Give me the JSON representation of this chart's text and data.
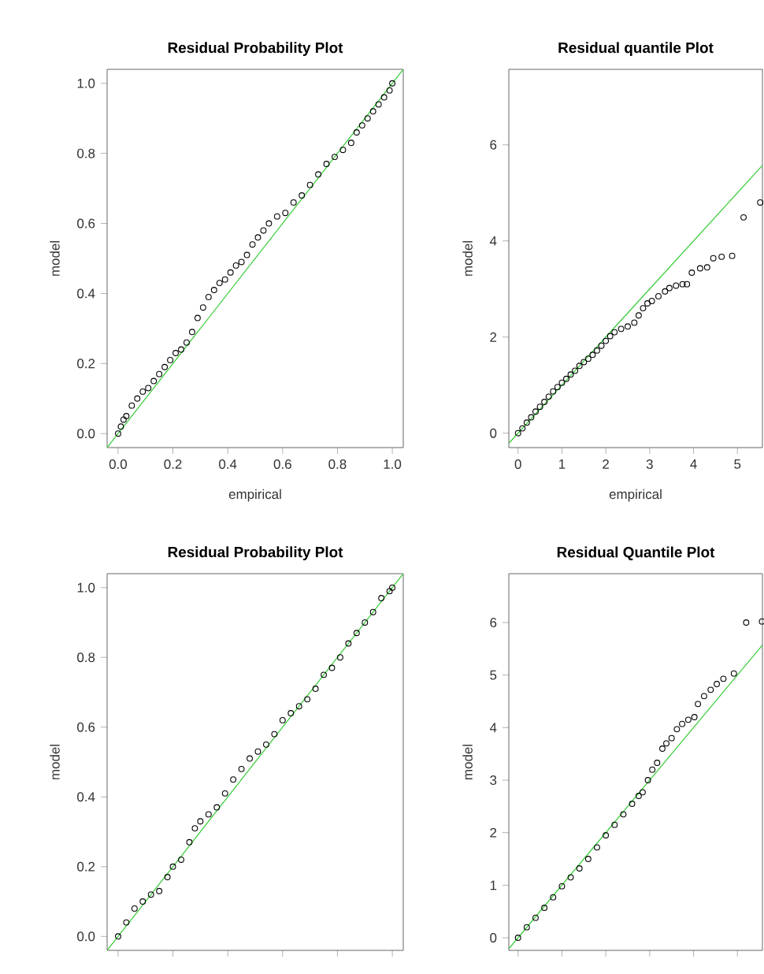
{
  "chart_data": [
    {
      "type": "scatter",
      "title": "Residual Probability Plot",
      "xlabel": "empirical",
      "ylabel": "model",
      "xlim": [
        -0.04,
        1.04
      ],
      "ylim": [
        -0.04,
        1.04
      ],
      "xticks": [
        {
          "value": 0,
          "label": "0.0"
        },
        {
          "value": 0.2,
          "label": "0.2"
        },
        {
          "value": 0.4,
          "label": "0.4"
        },
        {
          "value": 0.6,
          "label": "0.6"
        },
        {
          "value": 0.8,
          "label": "0.8"
        },
        {
          "value": 1,
          "label": "1.0"
        }
      ],
      "yticks": [
        {
          "value": 0,
          "label": "0.0"
        },
        {
          "value": 0.2,
          "label": "0.2"
        },
        {
          "value": 0.4,
          "label": "0.4"
        },
        {
          "value": 0.6,
          "label": "0.6"
        },
        {
          "value": 0.8,
          "label": "0.8"
        },
        {
          "value": 1,
          "label": "1.0"
        }
      ],
      "series": [
        {
          "type": "scatter",
          "marker": "circle",
          "color": "#000000",
          "x": [
            0,
            0.01,
            0.02,
            0.03,
            0.05,
            0.07,
            0.09,
            0.11,
            0.13,
            0.15,
            0.17,
            0.19,
            0.21,
            0.23,
            0.25,
            0.27,
            0.29,
            0.31,
            0.33,
            0.35,
            0.37,
            0.39,
            0.41,
            0.43,
            0.45,
            0.47,
            0.49,
            0.51,
            0.53,
            0.55,
            0.58,
            0.61,
            0.64,
            0.67,
            0.7,
            0.73,
            0.76,
            0.79,
            0.82,
            0.85,
            0.87,
            0.89,
            0.91,
            0.93,
            0.95,
            0.97,
            0.99,
            1.0
          ],
          "values": [
            0,
            0.02,
            0.04,
            0.05,
            0.08,
            0.1,
            0.12,
            0.13,
            0.15,
            0.17,
            0.19,
            0.21,
            0.23,
            0.24,
            0.26,
            0.29,
            0.33,
            0.36,
            0.39,
            0.41,
            0.43,
            0.44,
            0.46,
            0.48,
            0.49,
            0.51,
            0.54,
            0.56,
            0.58,
            0.6,
            0.62,
            0.63,
            0.66,
            0.68,
            0.71,
            0.74,
            0.77,
            0.79,
            0.81,
            0.83,
            0.86,
            0.88,
            0.9,
            0.92,
            0.94,
            0.96,
            0.98,
            1.0
          ]
        },
        {
          "type": "line",
          "color": "#33cc33",
          "x": [
            -0.04,
            1.04
          ],
          "values": [
            -0.04,
            1.04
          ]
        }
      ]
    },
    {
      "type": "scatter",
      "title": "Residual quantile Plot",
      "xlabel": "empirical",
      "ylabel": "model",
      "xlim": [
        -0.21,
        5.57
      ],
      "ylim": [
        -0.3,
        7.57
      ],
      "xticks": [
        0,
        1,
        2,
        3,
        4,
        5
      ],
      "yticks": [
        0,
        2,
        4,
        6
      ],
      "series": [
        {
          "type": "scatter",
          "marker": "circle",
          "color": "#000000",
          "x": [
            0,
            0.1,
            0.2,
            0.3,
            0.4,
            0.5,
            0.6,
            0.7,
            0.8,
            0.9,
            1.0,
            1.1,
            1.2,
            1.3,
            1.4,
            1.5,
            1.6,
            1.7,
            1.8,
            1.9,
            2.0,
            2.1,
            2.2,
            2.35,
            2.5,
            2.65,
            2.75,
            2.85,
            2.95,
            3.05,
            3.2,
            3.35,
            3.45,
            3.6,
            3.75,
            3.85,
            3.96,
            4.15,
            4.31,
            4.45,
            4.64,
            4.88,
            5.14,
            5.52
          ],
          "values": [
            0,
            0.1,
            0.22,
            0.33,
            0.45,
            0.55,
            0.65,
            0.76,
            0.87,
            0.96,
            1.05,
            1.13,
            1.22,
            1.3,
            1.4,
            1.48,
            1.55,
            1.63,
            1.72,
            1.82,
            1.92,
            2.02,
            2.1,
            2.17,
            2.22,
            2.3,
            2.45,
            2.6,
            2.7,
            2.75,
            2.85,
            2.95,
            3.02,
            3.07,
            3.1,
            3.1,
            3.34,
            3.43,
            3.45,
            3.64,
            3.67,
            3.69,
            4.49,
            4.8
          ]
        },
        {
          "type": "line",
          "color": "#33cc33",
          "x": [
            -0.21,
            5.57
          ],
          "values": [
            -0.21,
            5.57
          ]
        }
      ]
    },
    {
      "type": "scatter",
      "title": "Residual Probability Plot",
      "ylabel": "model",
      "tick_labels": "y",
      "xlim": [
        -0.04,
        1.04
      ],
      "ylim": [
        -0.04,
        1.04
      ],
      "xticks": [
        {
          "value": 0,
          "label": null
        },
        {
          "value": 0.2,
          "label": null
        },
        {
          "value": 0.4,
          "label": null
        },
        {
          "value": 0.6,
          "label": null
        },
        {
          "value": 0.8,
          "label": null
        },
        {
          "value": 1,
          "label": null
        }
      ],
      "yticks": [
        {
          "value": 0,
          "label": "0.0"
        },
        {
          "value": 0.2,
          "label": "0.2"
        },
        {
          "value": 0.4,
          "label": "0.4"
        },
        {
          "value": 0.6,
          "label": "0.6"
        },
        {
          "value": 0.8,
          "label": "0.8"
        },
        {
          "value": 1,
          "label": "1.0"
        }
      ],
      "series": [
        {
          "type": "scatter",
          "marker": "circle",
          "color": "#000000",
          "x": [
            0,
            0.03,
            0.06,
            0.09,
            0.12,
            0.15,
            0.18,
            0.2,
            0.23,
            0.26,
            0.28,
            0.3,
            0.33,
            0.36,
            0.39,
            0.42,
            0.45,
            0.48,
            0.51,
            0.54,
            0.57,
            0.6,
            0.63,
            0.66,
            0.69,
            0.72,
            0.75,
            0.78,
            0.81,
            0.84,
            0.87,
            0.9,
            0.93,
            0.96,
            0.99,
            1.0
          ],
          "values": [
            0,
            0.04,
            0.08,
            0.1,
            0.12,
            0.13,
            0.17,
            0.2,
            0.22,
            0.27,
            0.31,
            0.33,
            0.35,
            0.37,
            0.41,
            0.45,
            0.48,
            0.51,
            0.53,
            0.55,
            0.58,
            0.62,
            0.64,
            0.66,
            0.68,
            0.71,
            0.75,
            0.77,
            0.8,
            0.84,
            0.87,
            0.9,
            0.93,
            0.97,
            0.99,
            1.0
          ]
        },
        {
          "type": "line",
          "color": "#33cc33",
          "x": [
            -0.04,
            1.04
          ],
          "values": [
            -0.04,
            1.04
          ]
        }
      ]
    },
    {
      "type": "scatter",
      "title": "Residual Quantile Plot",
      "ylabel": "model",
      "tick_labels": "y",
      "xlim": [
        -0.21,
        5.57
      ],
      "ylim": [
        -0.24,
        6.93
      ],
      "xticks": [
        {
          "value": 0,
          "label": null
        },
        {
          "value": 1,
          "label": null
        },
        {
          "value": 2,
          "label": null
        },
        {
          "value": 3,
          "label": null
        },
        {
          "value": 4,
          "label": null
        },
        {
          "value": 5,
          "label": null
        }
      ],
      "yticks": [
        0,
        1,
        2,
        3,
        4,
        5,
        6
      ],
      "series": [
        {
          "type": "scatter",
          "marker": "circle",
          "color": "#000000",
          "x": [
            0,
            0.2,
            0.4,
            0.6,
            0.8,
            1.0,
            1.2,
            1.4,
            1.6,
            1.8,
            2.0,
            2.2,
            2.4,
            2.6,
            2.75,
            2.84,
            2.96,
            3.06,
            3.17,
            3.29,
            3.38,
            3.5,
            3.62,
            3.74,
            3.88,
            4.02,
            4.1,
            4.24,
            4.39,
            4.53,
            4.68,
            4.92,
            5.2,
            5.56
          ],
          "values": [
            0,
            0.2,
            0.38,
            0.57,
            0.77,
            0.98,
            1.15,
            1.32,
            1.5,
            1.72,
            1.95,
            2.15,
            2.35,
            2.55,
            2.7,
            2.77,
            3.0,
            3.2,
            3.33,
            3.6,
            3.7,
            3.8,
            3.97,
            4.07,
            4.15,
            4.2,
            4.45,
            4.6,
            4.72,
            4.83,
            4.93,
            5.03,
            6.0,
            6.02
          ]
        },
        {
          "type": "line",
          "color": "#33cc33",
          "x": [
            -0.21,
            5.57
          ],
          "values": [
            -0.21,
            5.57
          ]
        }
      ]
    }
  ]
}
